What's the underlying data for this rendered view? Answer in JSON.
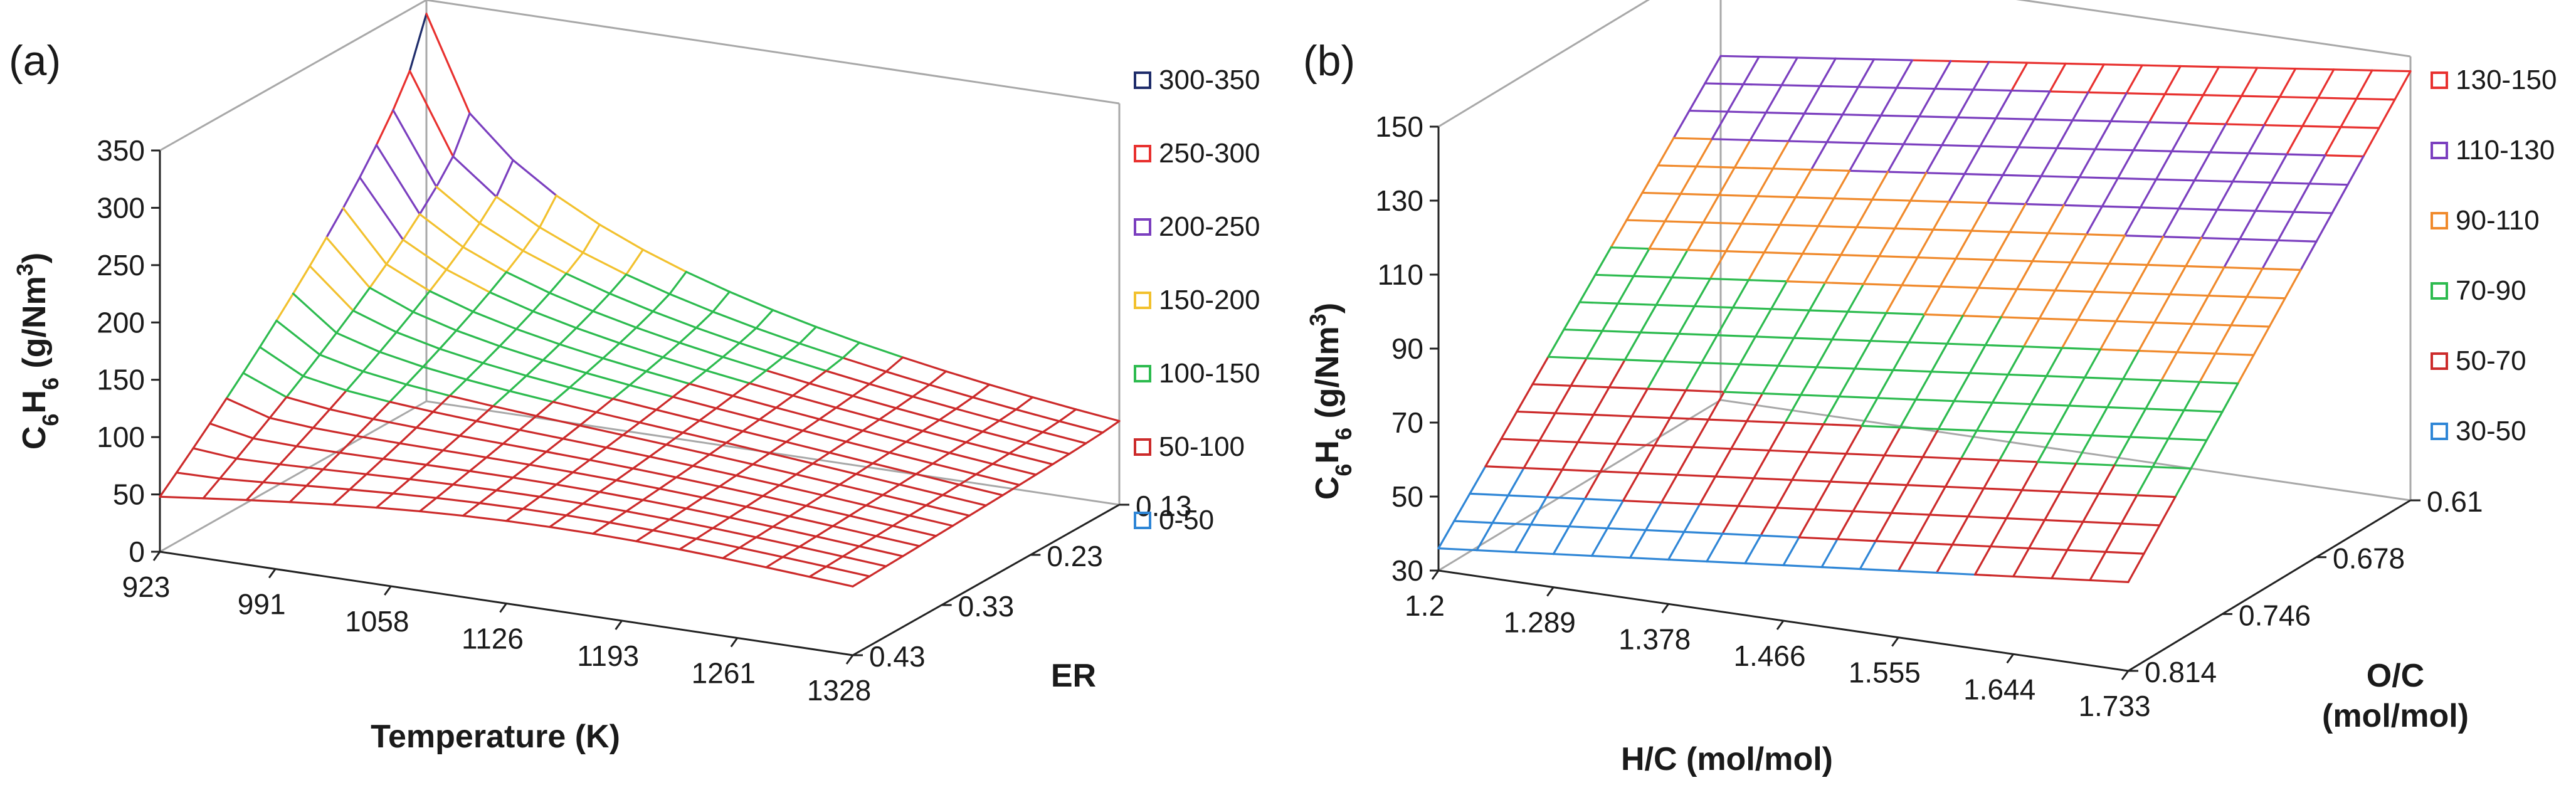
{
  "chart_data": [
    {
      "type": "surface",
      "panel_label": "(a)",
      "z_axis_label": "C6H6 (g/Nm3)",
      "z_label_parts": [
        "C",
        "6",
        "H",
        "6",
        " (g/Nm",
        "3",
        ")"
      ],
      "x_axis_label": "Temperature (K)",
      "y_axis_label": "ER",
      "x_ticks": [
        "923",
        "991",
        "1058",
        "1126",
        "1193",
        "1261",
        "1328"
      ],
      "y_ticks": [
        "0.13",
        "0.23",
        "0.33",
        "0.43"
      ],
      "z_ticks": [
        "0",
        "50",
        "100",
        "150",
        "200",
        "250",
        "300",
        "350"
      ],
      "x_range": [
        923,
        1328
      ],
      "y_range": [
        0.13,
        0.43
      ],
      "zlim": [
        0,
        350
      ],
      "corner_values": {
        "lowT_highER": 48,
        "lowT_lowER": 338,
        "highT_lowER": 73,
        "highT_highER": 60
      },
      "legend": [
        {
          "label": "300-350",
          "color": "#1f2d6b",
          "min": 300,
          "max": 350
        },
        {
          "label": "250-300",
          "color": "#e8312f",
          "min": 250,
          "max": 300
        },
        {
          "label": "200-250",
          "color": "#7b3fbf",
          "min": 200,
          "max": 250
        },
        {
          "label": "150-200",
          "color": "#f2c12e",
          "min": 150,
          "max": 200
        },
        {
          "label": "100-150",
          "color": "#2dbb4f",
          "min": 100,
          "max": 150
        },
        {
          "label": "50-100",
          "color": "#cc2b2b",
          "min": 50,
          "max": 100
        },
        {
          "label": "0-50",
          "color": "#2f86d6",
          "min": 0,
          "max": 50
        }
      ]
    },
    {
      "type": "surface",
      "panel_label": "(b)",
      "z_axis_label": "C6H6 (g/Nm3)",
      "z_label_parts": [
        "C",
        "6",
        "H",
        "6",
        " (g/Nm",
        "3",
        ")"
      ],
      "x_axis_label": "H/C (mol/mol)",
      "y_axis_label": "O/C (mol/mol)",
      "y_label_lines": [
        "O/C",
        "(mol/mol)"
      ],
      "x_ticks": [
        "1.2",
        "1.289",
        "1.378",
        "1.466",
        "1.555",
        "1.644",
        "1.733"
      ],
      "y_ticks": [
        "0.61",
        "0.678",
        "0.746",
        "0.814"
      ],
      "z_ticks": [
        "30",
        "50",
        "70",
        "90",
        "110",
        "130",
        "150"
      ],
      "x_range": [
        1.2,
        1.733
      ],
      "y_range": [
        0.61,
        0.814
      ],
      "zlim": [
        30,
        150
      ],
      "corner_values": {
        "lowHC_highOC": 36,
        "lowHC_lowOC": 123,
        "highHC_lowOC": 146,
        "highHC_highOC": 54
      },
      "legend": [
        {
          "label": "130-150",
          "color": "#e8312f",
          "min": 130,
          "max": 150
        },
        {
          "label": "110-130",
          "color": "#7b3fbf",
          "min": 110,
          "max": 130
        },
        {
          "label": "90-110",
          "color": "#f08a2c",
          "min": 90,
          "max": 110
        },
        {
          "label": "70-90",
          "color": "#2dbb4f",
          "min": 70,
          "max": 90
        },
        {
          "label": "50-70",
          "color": "#cc2b2b",
          "min": 50,
          "max": 70
        },
        {
          "label": "30-50",
          "color": "#2f86d6",
          "min": 30,
          "max": 50
        }
      ]
    }
  ]
}
